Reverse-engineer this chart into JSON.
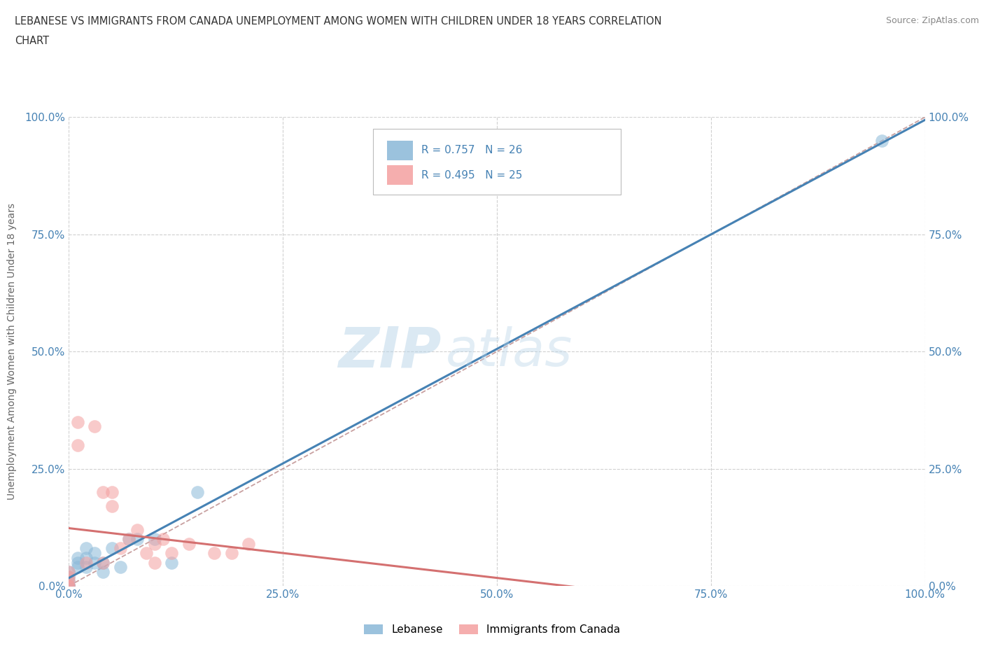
{
  "title_line1": "LEBANESE VS IMMIGRANTS FROM CANADA UNEMPLOYMENT AMONG WOMEN WITH CHILDREN UNDER 18 YEARS CORRELATION",
  "title_line2": "CHART",
  "source": "Source: ZipAtlas.com",
  "ylabel": "Unemployment Among Women with Children Under 18 years",
  "xlim": [
    0,
    1.0
  ],
  "ylim": [
    0,
    1.0
  ],
  "xticks": [
    0.0,
    0.25,
    0.5,
    0.75,
    1.0
  ],
  "yticks": [
    0.0,
    0.25,
    0.5,
    0.75,
    1.0
  ],
  "xticklabels": [
    "0.0%",
    "25.0%",
    "50.0%",
    "75.0%",
    "100.0%"
  ],
  "yticklabels": [
    "0.0%",
    "25.0%",
    "50.0%",
    "75.0%",
    "100.0%"
  ],
  "lebanese_color": "#8ab8d8",
  "immigrants_color": "#f4a0a0",
  "lebanese_line_color": "#4682b4",
  "immigrants_line_color": "#d47070",
  "lebanese_R": 0.757,
  "lebanese_N": 26,
  "immigrants_R": 0.495,
  "immigrants_N": 25,
  "watermark_zip": "ZIP",
  "watermark_atlas": "atlas",
  "legend_labels": [
    "Lebanese",
    "Immigrants from Canada"
  ],
  "lebanese_x": [
    0.0,
    0.0,
    0.0,
    0.0,
    0.0,
    0.0,
    0.0,
    0.0,
    0.01,
    0.01,
    0.01,
    0.02,
    0.02,
    0.02,
    0.03,
    0.03,
    0.04,
    0.04,
    0.05,
    0.06,
    0.07,
    0.08,
    0.1,
    0.12,
    0.15,
    0.95
  ],
  "lebanese_y": [
    0.0,
    0.0,
    0.0,
    0.0,
    0.0,
    0.01,
    0.02,
    0.03,
    0.04,
    0.05,
    0.06,
    0.04,
    0.06,
    0.08,
    0.05,
    0.07,
    0.03,
    0.05,
    0.08,
    0.04,
    0.1,
    0.1,
    0.1,
    0.05,
    0.2,
    0.95
  ],
  "immigrants_x": [
    0.0,
    0.0,
    0.0,
    0.0,
    0.0,
    0.01,
    0.01,
    0.02,
    0.03,
    0.04,
    0.04,
    0.05,
    0.05,
    0.06,
    0.07,
    0.08,
    0.09,
    0.1,
    0.1,
    0.11,
    0.12,
    0.14,
    0.17,
    0.19,
    0.21
  ],
  "immigrants_y": [
    0.0,
    0.0,
    0.01,
    0.02,
    0.03,
    0.3,
    0.35,
    0.05,
    0.34,
    0.2,
    0.05,
    0.17,
    0.2,
    0.08,
    0.1,
    0.12,
    0.07,
    0.09,
    0.05,
    0.1,
    0.07,
    0.09,
    0.07,
    0.07,
    0.09
  ],
  "background_color": "#ffffff",
  "grid_color": "#d0d0d0",
  "dot_size": 180,
  "dot_alpha": 0.55,
  "line_width": 2.2,
  "diag_color": "#c8a0a0",
  "diag_style": "--"
}
